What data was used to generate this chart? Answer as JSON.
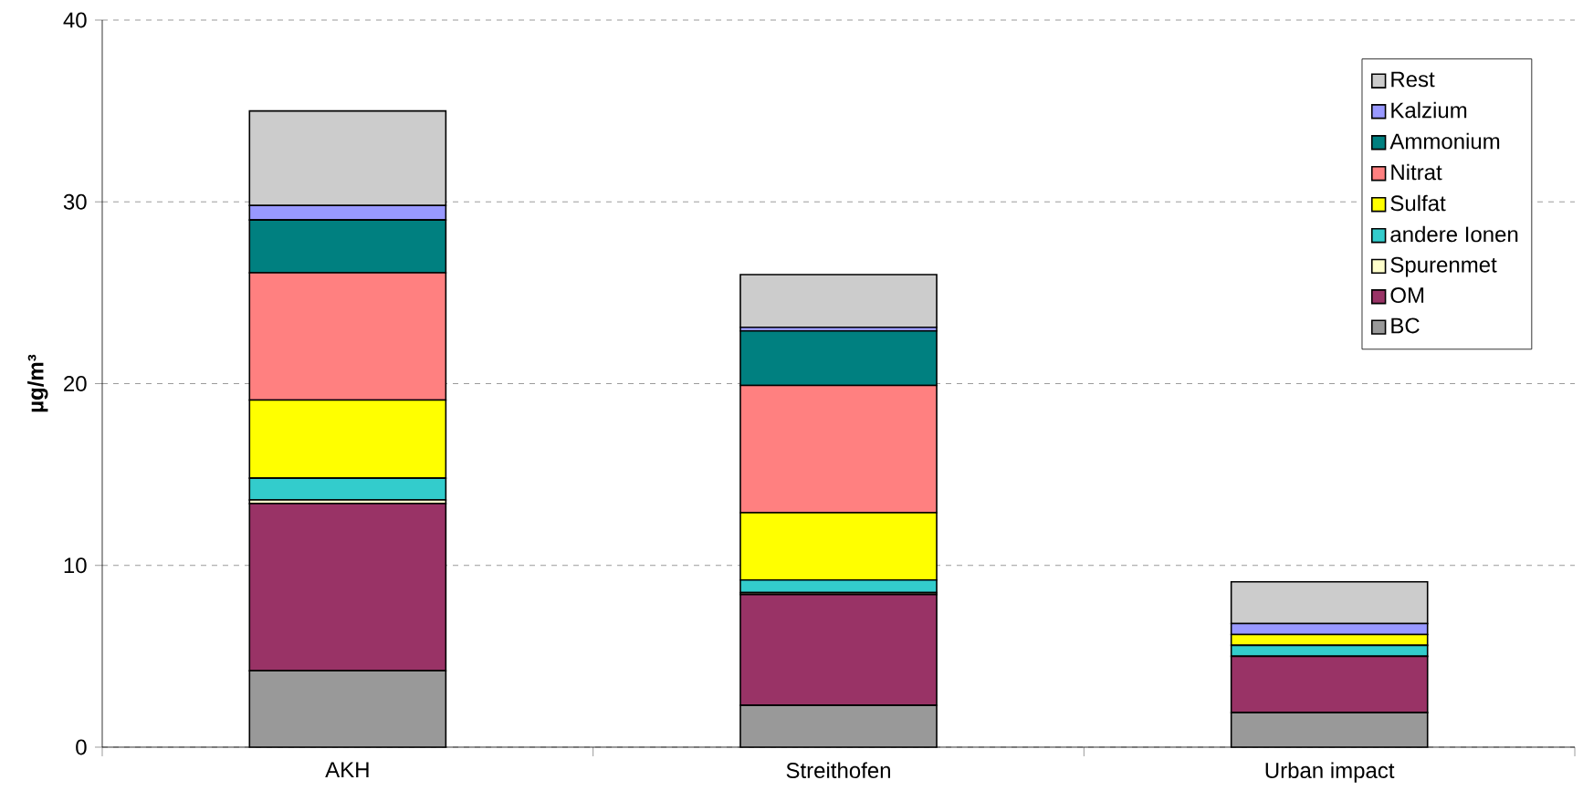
{
  "chart_data": {
    "type": "bar",
    "stacked": true,
    "ylabel": "µg/m³",
    "categories": [
      "AKH",
      "Streithofen",
      "Urban impact"
    ],
    "series": [
      {
        "name": "BC",
        "color": "#999999",
        "values": [
          4.2,
          2.3,
          1.9
        ]
      },
      {
        "name": "OM",
        "color": "#993366",
        "values": [
          9.2,
          6.1,
          3.1
        ]
      },
      {
        "name": "Spurenmet",
        "color": "#ffffcc",
        "values": [
          0.2,
          0.1,
          0
        ]
      },
      {
        "name": "andere Ionen",
        "color": "#33cccc",
        "values": [
          1.2,
          0.7,
          0.6
        ]
      },
      {
        "name": "Sulfat",
        "color": "#ffff00",
        "values": [
          4.3,
          3.7,
          0.6
        ]
      },
      {
        "name": "Nitrat",
        "color": "#ff8080",
        "values": [
          7.0,
          7.0,
          0
        ]
      },
      {
        "name": "Ammonium",
        "color": "#008080",
        "values": [
          2.9,
          3.0,
          0
        ]
      },
      {
        "name": "Kalzium",
        "color": "#9999ff",
        "values": [
          0.8,
          0.2,
          0.6
        ]
      },
      {
        "name": "Rest",
        "color": "#cccccc",
        "values": [
          5.2,
          2.9,
          2.3
        ]
      }
    ],
    "ylim": [
      0,
      40
    ],
    "yticks": [
      0,
      10,
      20,
      30,
      40
    ],
    "grid": "y",
    "legend": "top right"
  }
}
